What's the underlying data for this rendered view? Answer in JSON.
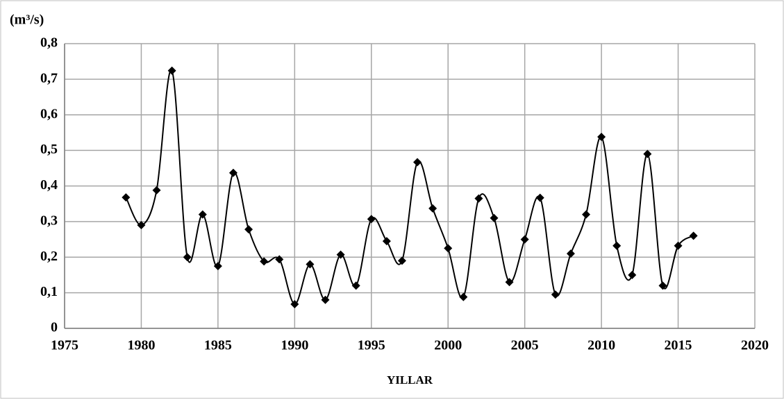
{
  "chart_data": {
    "type": "line",
    "y_label": "(m³/s)",
    "x_label": "YILLAR",
    "x": [
      1979,
      1980,
      1981,
      1982,
      1983,
      1984,
      1985,
      1986,
      1987,
      1988,
      1989,
      1990,
      1991,
      1992,
      1993,
      1994,
      1995,
      1996,
      1997,
      1998,
      1999,
      2000,
      2001,
      2002,
      2003,
      2004,
      2005,
      2006,
      2007,
      2008,
      2009,
      2010,
      2011,
      2012,
      2013,
      2014,
      2015,
      2016
    ],
    "values": [
      0.368,
      0.29,
      0.388,
      0.724,
      0.2,
      0.32,
      0.175,
      0.437,
      0.278,
      0.188,
      0.194,
      0.068,
      0.18,
      0.08,
      0.207,
      0.12,
      0.307,
      0.245,
      0.19,
      0.467,
      0.337,
      0.225,
      0.088,
      0.365,
      0.31,
      0.13,
      0.25,
      0.367,
      0.095,
      0.21,
      0.32,
      0.538,
      0.232,
      0.15,
      0.49,
      0.12,
      0.232,
      0.26
    ],
    "color": "#000000",
    "smooth": true,
    "xlim": [
      1975,
      2020
    ],
    "xticks": [
      1975,
      1980,
      1985,
      1990,
      1995,
      2000,
      2005,
      2010,
      2015,
      2020
    ],
    "ylim": [
      0,
      0.8
    ],
    "yticks": [
      0,
      {
        "value": 0.1,
        "label": "0,1"
      },
      {
        "value": 0.2,
        "label": "0,2"
      },
      {
        "value": 0.3,
        "label": "0,3"
      },
      {
        "value": 0.4,
        "label": "0,4"
      },
      {
        "value": 0.5,
        "label": "0,5"
      },
      {
        "value": 0.6,
        "label": "0,6"
      },
      {
        "value": 0.7,
        "label": "0,7"
      },
      {
        "value": 0.8,
        "label": "0,8"
      }
    ],
    "grid": true
  }
}
